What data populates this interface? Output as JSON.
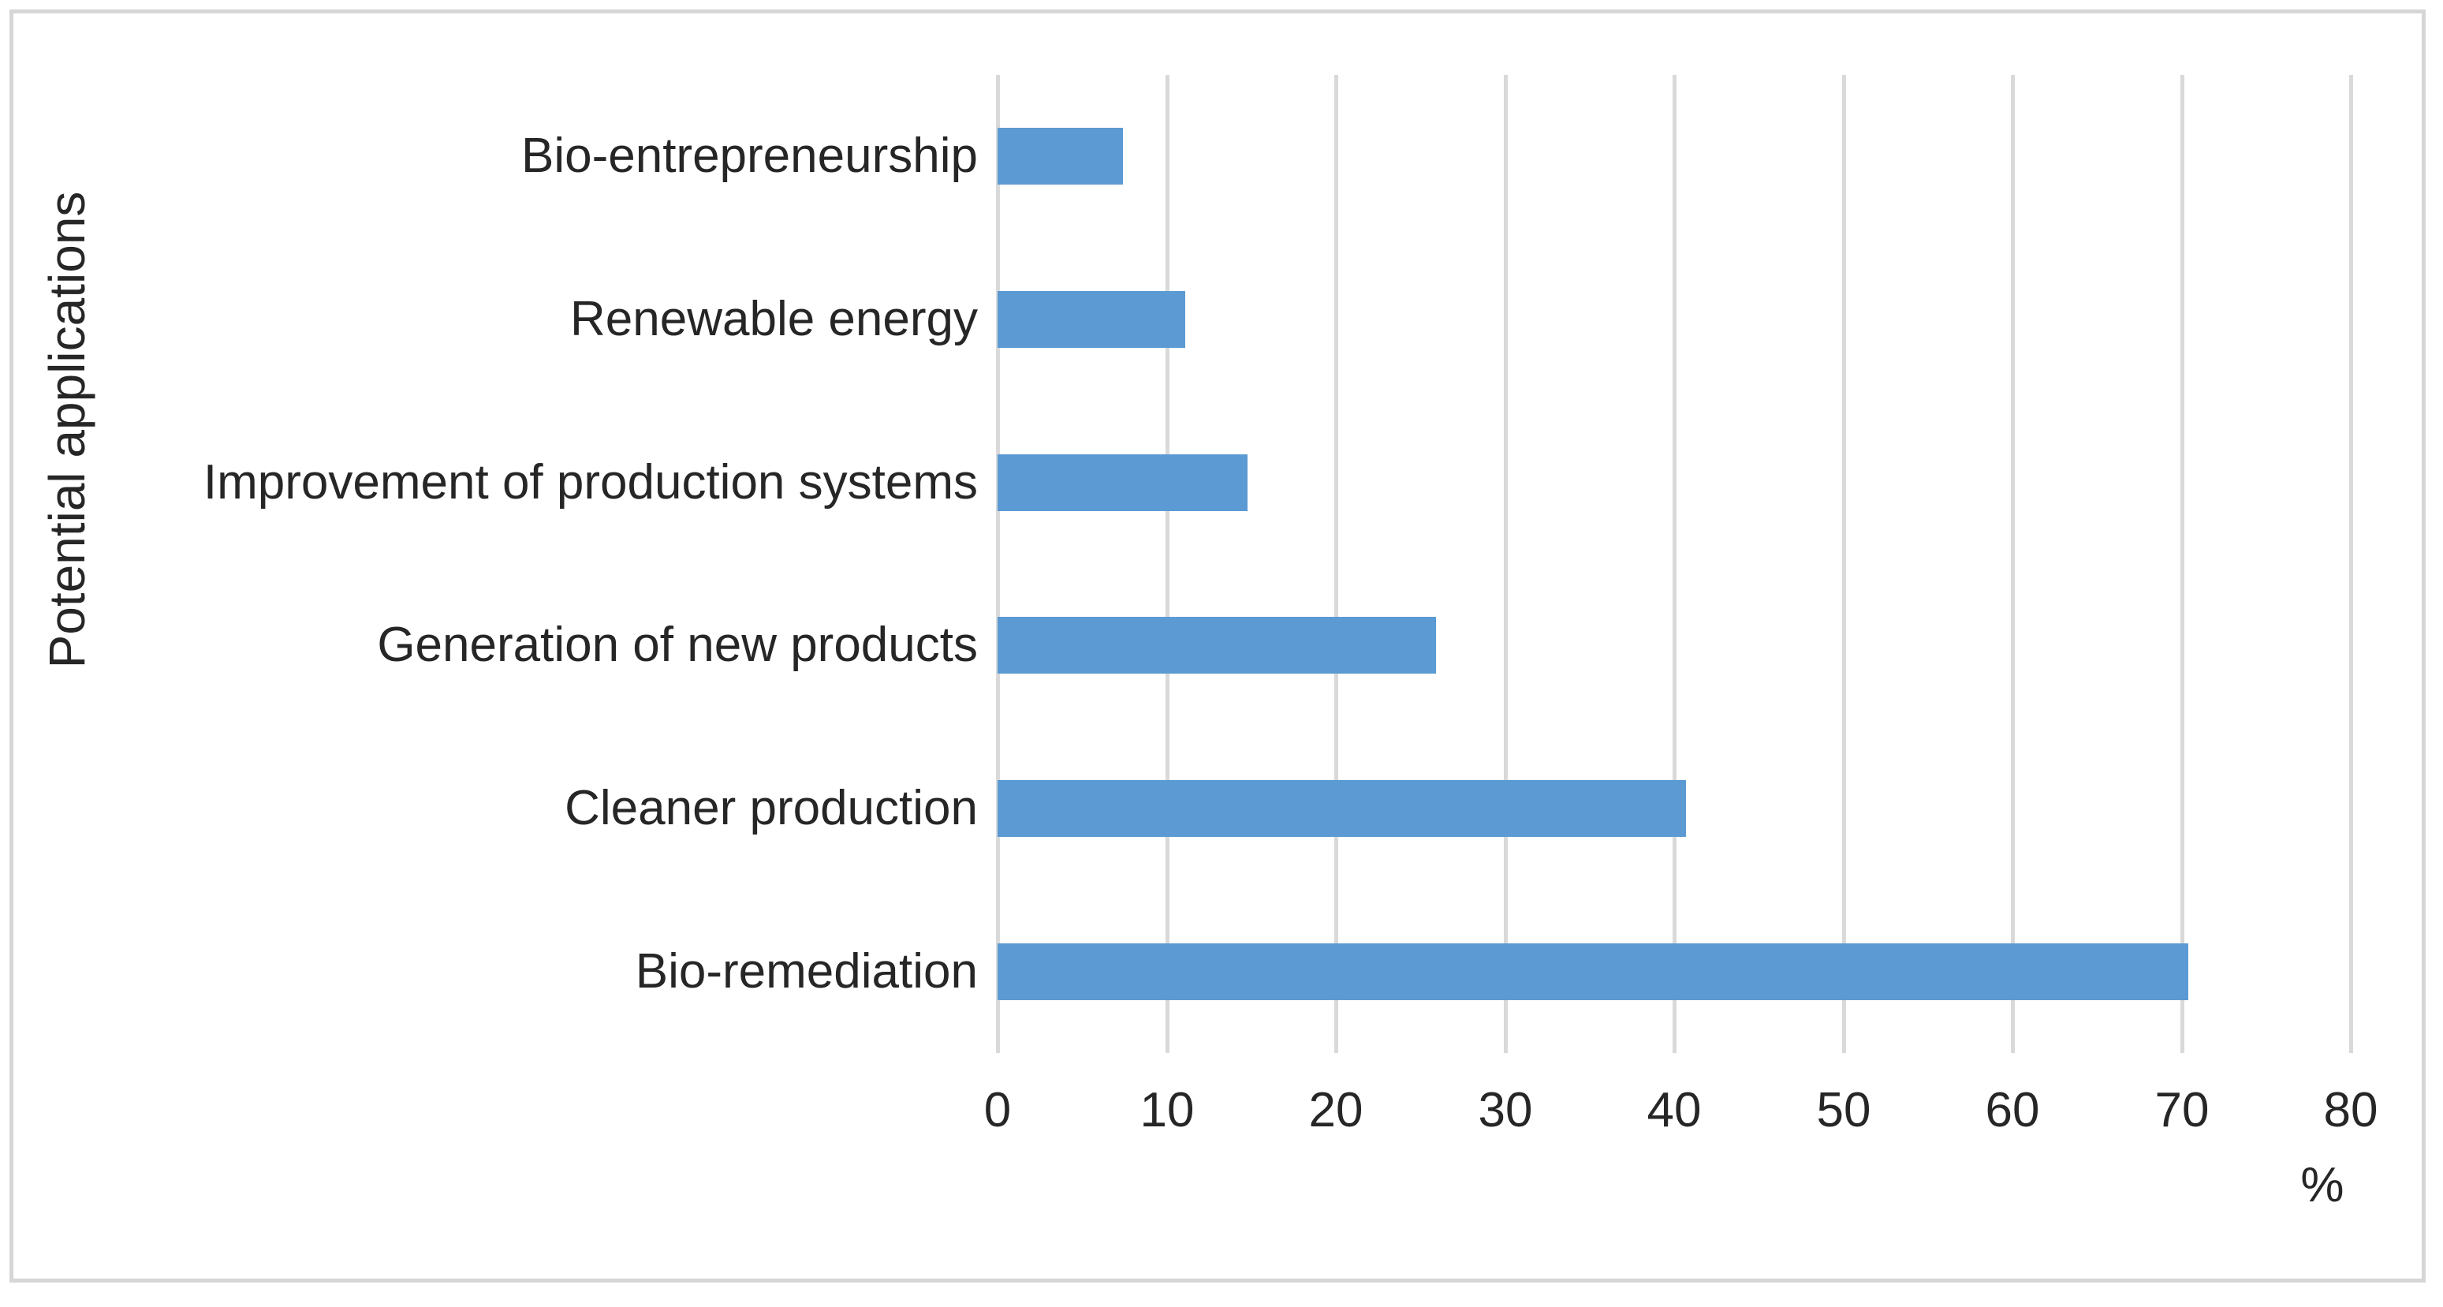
{
  "chart_data": {
    "type": "bar",
    "orientation": "horizontal",
    "title": "",
    "categories": [
      "Bio-entrepreneurship",
      "Renewable energy",
      "Improvement of production systems",
      "Generation of new products",
      "Cleaner production",
      "Bio-remediation"
    ],
    "values": [
      7.4,
      11.1,
      14.8,
      25.9,
      40.7,
      70.4
    ],
    "xlabel": "%",
    "ylabel": "Potential applications",
    "xlim": [
      0,
      80
    ],
    "x_ticks": [
      0,
      10,
      20,
      30,
      40,
      50,
      60,
      70,
      80
    ],
    "grid": true,
    "legend_position": "none",
    "colors": {
      "bar": "#5b9ad3",
      "gridline": "#d9d9d9",
      "frame_border": "#d6d6d6",
      "text": "#262626",
      "background": "#ffffff"
    }
  }
}
